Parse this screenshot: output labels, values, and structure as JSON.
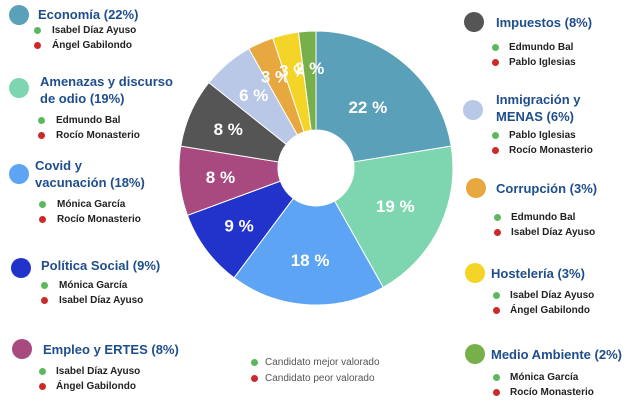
{
  "colors": {
    "best": "#5cb85c",
    "worst": "#cc2a2a",
    "title": "#1f4e8c"
  },
  "legend": {
    "best": "Candidato mejor valorado",
    "worst": "Candidato peor valorado"
  },
  "categories": [
    {
      "name": "Economía (22%)",
      "value": 22,
      "color": "#5aa0b8",
      "best": "Isabel Díaz Ayuso",
      "worst": "Ángel Gabilondo"
    },
    {
      "name": "Amenazas y discurso de odio (19%)",
      "value": 19,
      "color": "#7dd6b0",
      "best": "Edmundo Bal",
      "worst": "Rocío Monasterio"
    },
    {
      "name": "Covid y vacunación (18%)",
      "value": 18,
      "color": "#5ea4f4",
      "best": "Mónica García",
      "worst": "Rocío Monasterio"
    },
    {
      "name": "Política Social (9%)",
      "value": 9,
      "color": "#2233cc",
      "best": "Mónica García",
      "worst": "Isabel Díaz Ayuso"
    },
    {
      "name": "Empleo y ERTES (8%)",
      "value": 8,
      "color": "#a84a80",
      "best": "Isabel Díaz Ayuso",
      "worst": "Ángel Gabilondo"
    },
    {
      "name": "Impuestos (8%)",
      "value": 8,
      "color": "#555555",
      "best": "Edmundo Bal",
      "worst": "Pablo Iglesias"
    },
    {
      "name": "Inmigración y MENAS (6%)",
      "value": 6,
      "color": "#b8c8e6",
      "best": "Pablo Iglesias",
      "worst": "Rocío Monasterio"
    },
    {
      "name": "Corrupción (3%)",
      "value": 3,
      "color": "#e8a840",
      "best": "Edmundo Bal",
      "worst": "Isabel Díaz Ayuso"
    },
    {
      "name": "Hostelería (3%)",
      "value": 3,
      "color": "#f5d428",
      "best": "Isabel Díaz Ayuso",
      "worst": "Ángel Gabilondo"
    },
    {
      "name": "Medio Ambiente (2%)",
      "value": 2,
      "color": "#77b04a",
      "best": "Mónica García",
      "worst": "Rocío Monasterio"
    }
  ],
  "chart_data": {
    "type": "pie",
    "title": "",
    "categories": [
      "Economía",
      "Amenazas y discurso de odio",
      "Covid y vacunación",
      "Política Social",
      "Empleo y ERTES",
      "Impuestos",
      "Inmigración y MENAS",
      "Corrupción",
      "Hostelería",
      "Medio Ambiente"
    ],
    "values": [
      22,
      19,
      18,
      9,
      8,
      8,
      6,
      3,
      3,
      2
    ],
    "slice_labels": [
      "22 %",
      "19 %",
      "18 %",
      "9 %",
      "8 %",
      "8 %",
      "6 %",
      "3 %",
      "3 %",
      "2 %"
    ],
    "unit": "%"
  }
}
